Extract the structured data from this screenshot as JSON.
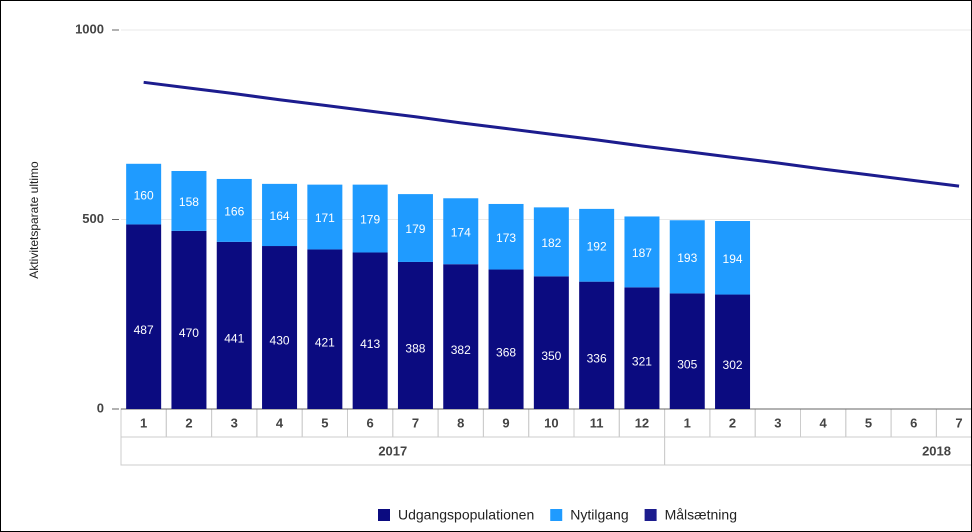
{
  "chart_data": {
    "type": "bar",
    "stacked": true,
    "y_label": "Aktivitetsparate ultimo",
    "groups": [
      {
        "label": "2017",
        "categories": [
          "1",
          "2",
          "3",
          "4",
          "5",
          "6",
          "7",
          "8",
          "9",
          "10",
          "11",
          "12"
        ]
      },
      {
        "label": "2018",
        "categories": [
          "1",
          "2",
          "3",
          "4",
          "5",
          "6",
          "7"
        ]
      }
    ],
    "series": [
      {
        "name": "Udgangspopulationen",
        "type": "bar",
        "color": "#0b0b80",
        "values": [
          487,
          470,
          441,
          430,
          421,
          413,
          388,
          382,
          368,
          350,
          336,
          321,
          305,
          302,
          null,
          null,
          null,
          null,
          null
        ]
      },
      {
        "name": "Nytilgang",
        "type": "bar",
        "color": "#1f9bff",
        "values": [
          160,
          158,
          166,
          164,
          171,
          179,
          179,
          174,
          173,
          182,
          192,
          187,
          193,
          194,
          null,
          null,
          null,
          null,
          null
        ]
      },
      {
        "name": "Målsætning",
        "type": "line",
        "color": "#1c1c8e",
        "values": [
          862,
          847,
          832,
          816,
          801,
          786,
          771,
          755,
          740,
          725,
          710,
          694,
          679,
          664,
          649,
          633,
          618,
          603,
          588
        ]
      }
    ],
    "ylim": [
      0,
      1000
    ],
    "yticks": [
      0,
      500,
      1000
    ],
    "grid": true,
    "legend": "bottom"
  }
}
